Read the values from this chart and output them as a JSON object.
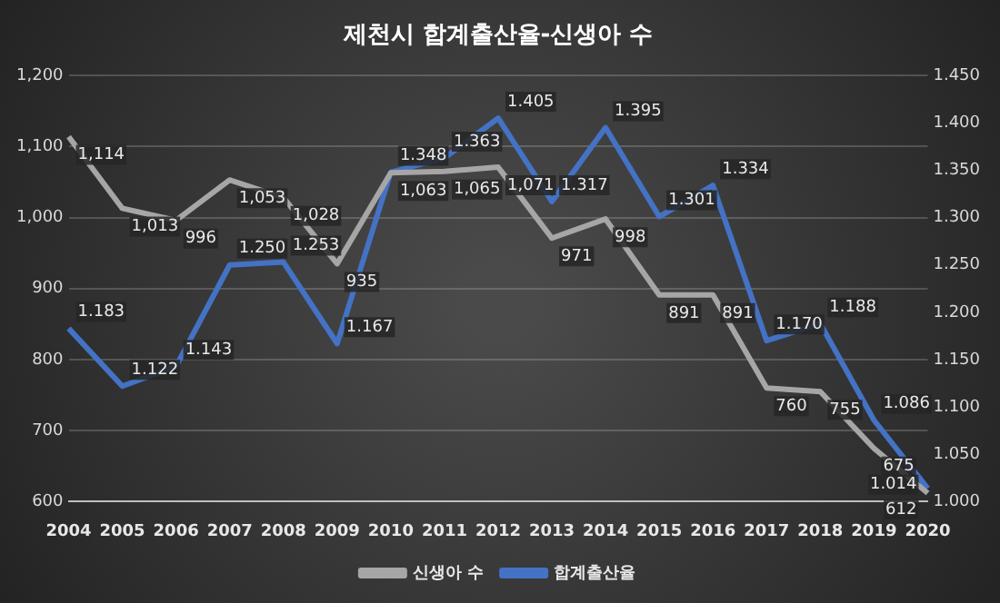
{
  "chart_data": {
    "type": "line",
    "title": "제천시 합계출산율-신생아 수",
    "categories": [
      "2004",
      "2005",
      "2006",
      "2007",
      "2008",
      "2009",
      "2010",
      "2011",
      "2012",
      "2013",
      "2014",
      "2015",
      "2016",
      "2017",
      "2018",
      "2019",
      "2020"
    ],
    "series": [
      {
        "name": "신생아 수",
        "color": "#a6a6a6",
        "values": [
          1114,
          1013,
          996,
          1053,
          1028,
          935,
          1063,
          1065,
          1071,
          971,
          998,
          891,
          891,
          760,
          755,
          675,
          612
        ],
        "value_labels": [
          "1,114",
          "1,013",
          "996",
          "1,053",
          "1,028",
          "935",
          "1,063",
          "1,065",
          "1,071",
          "971",
          "998",
          "891",
          "891",
          "760",
          "755",
          "675",
          "612"
        ]
      },
      {
        "name": "합계출산율",
        "color": "#4472c4",
        "axis": "y2",
        "values": [
          1.183,
          1.122,
          1.143,
          1.25,
          1.253,
          1.167,
          1.348,
          1.363,
          1.405,
          1.317,
          1.395,
          1.301,
          1.334,
          1.17,
          1.188,
          1.086,
          1.014
        ],
        "value_labels": [
          "1.183",
          "1.122",
          "1.143",
          "1.250",
          "1.253",
          "1.167",
          "1.348",
          "1.363",
          "1.405",
          "1.317",
          "1.395",
          "1.301",
          "1.334",
          "1.170",
          "1.188",
          "1.086",
          "1.014"
        ]
      }
    ],
    "ylim": [
      600,
      1200
    ],
    "yticks": [
      {
        "value": 600,
        "label": "600"
      },
      {
        "value": 700,
        "label": "700"
      },
      {
        "value": 800,
        "label": "800"
      },
      {
        "value": 900,
        "label": "900"
      },
      {
        "value": 1000,
        "label": "1,000"
      },
      {
        "value": 1100,
        "label": "1,100"
      },
      {
        "value": 1200,
        "label": "1,200"
      }
    ],
    "y2lim": [
      1.0,
      1.45
    ],
    "y2ticks": [
      {
        "value": 1.0,
        "label": "1.000"
      },
      {
        "value": 1.05,
        "label": "1.050"
      },
      {
        "value": 1.1,
        "label": "1.100"
      },
      {
        "value": 1.15,
        "label": "1.150"
      },
      {
        "value": 1.2,
        "label": "1.200"
      },
      {
        "value": 1.25,
        "label": "1.250"
      },
      {
        "value": 1.3,
        "label": "1.300"
      },
      {
        "value": 1.35,
        "label": "1.350"
      },
      {
        "value": 1.4,
        "label": "1.400"
      },
      {
        "value": 1.45,
        "label": "1.450"
      }
    ],
    "grid": "y",
    "legend": "bottom",
    "marker": "none",
    "line_style": "solid"
  }
}
